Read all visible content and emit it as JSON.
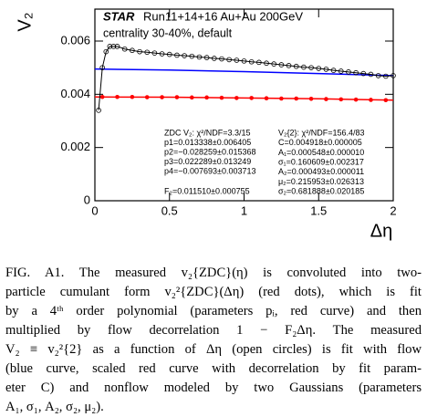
{
  "chart_data": {
    "type": "scatter",
    "xlabel": "Δη",
    "ylabel": "V₂",
    "xlim": [
      0,
      2
    ],
    "ylim": [
      0,
      0.0072
    ],
    "xticks": [
      0,
      0.5,
      1,
      1.5,
      2
    ],
    "yticks": [
      0,
      0.002,
      0.004,
      0.006
    ],
    "annotations": {
      "experiment": "STAR",
      "run": "Run11+14+16 Au+Au 200GeV",
      "centrality": "centrality 30-40%, default",
      "zdc": [
        "ZDC V₂: χ²/NDF=3.3/15",
        "p1=0.013338±0.006405",
        "p2=−0.028259±0.015368",
        "p3=0.022289±0.013249",
        "p4=−0.007693±0.003713",
        "F₂=0.011510±0.000755"
      ],
      "v22": [
        "V₂{2}: χ²/NDF=156.4/83",
        "C=0.004918±0.000005",
        "A₁=0.000548±0.000010",
        "σ₁=0.160609±0.002317",
        "A₂=0.000493±0.000011",
        "μ₂=0.215953±0.026313",
        "σ₂=0.681888±0.020185"
      ]
    },
    "series": [
      {
        "marker": "line",
        "color": "#0000ff",
        "x": [
          0,
          0.5,
          1,
          1.5,
          2
        ],
        "values": [
          0.00495,
          0.00491,
          0.00485,
          0.00478,
          0.0047
        ]
      },
      {
        "marker": "line",
        "color": "#ff0000",
        "x": [
          0,
          0.5,
          1,
          1.5,
          2
        ],
        "values": [
          0.0039,
          0.00389,
          0.00386,
          0.00383,
          0.00378
        ]
      },
      {
        "marker": "dot",
        "color": "#ff0000",
        "x": [
          0.05,
          0.15,
          0.25,
          0.35,
          0.45,
          0.55,
          0.65,
          0.75,
          0.85,
          0.95,
          1.05,
          1.15,
          1.25,
          1.35,
          1.45,
          1.55,
          1.65,
          1.75,
          1.85,
          1.95
        ],
        "values": [
          0.0039,
          0.0039,
          0.0039,
          0.00389,
          0.00389,
          0.00389,
          0.00388,
          0.00388,
          0.00387,
          0.00386,
          0.00386,
          0.00385,
          0.00384,
          0.00384,
          0.00383,
          0.00382,
          0.00381,
          0.0038,
          0.00379,
          0.00378
        ]
      },
      {
        "marker": "open-circle",
        "color": "#000000",
        "x": [
          0.025,
          0.05,
          0.075,
          0.1,
          0.125,
          0.15,
          0.2,
          0.25,
          0.3,
          0.35,
          0.4,
          0.45,
          0.5,
          0.55,
          0.6,
          0.65,
          0.7,
          0.75,
          0.8,
          0.85,
          0.9,
          0.95,
          1.0,
          1.05,
          1.1,
          1.15,
          1.2,
          1.25,
          1.3,
          1.35,
          1.4,
          1.45,
          1.5,
          1.55,
          1.6,
          1.65,
          1.7,
          1.75,
          1.8,
          1.85,
          1.9,
          1.95,
          2.0
        ],
        "values": [
          0.0034,
          0.005,
          0.0056,
          0.0058,
          0.0058,
          0.0058,
          0.0057,
          0.00565,
          0.0056,
          0.00558,
          0.00555,
          0.00552,
          0.0055,
          0.00547,
          0.00545,
          0.00543,
          0.0054,
          0.00538,
          0.00535,
          0.00533,
          0.0053,
          0.00528,
          0.00525,
          0.00522,
          0.0052,
          0.00517,
          0.00514,
          0.00511,
          0.00508,
          0.00505,
          0.00502,
          0.005,
          0.00497,
          0.00494,
          0.0049,
          0.00487,
          0.00484,
          0.00481,
          0.00478,
          0.00475,
          0.0047,
          0.00468,
          0.0047
        ]
      }
    ]
  },
  "caption": [
    "FIG. A1. The measured v₂{ZDC}(η) is convoluted into two-",
    "particle cumulant form v₂²{ZDC}(Δη) (red dots), which is fit",
    "by a 4ᵗʰ order polynomial (parameters pᵢ, red curve) and then",
    "multiplied by flow decorrelation 1 − F₂Δη.  The measured",
    "V₂ ≡ v₂²{2} as a function of Δη (open circles) is fit with flow",
    "(blue curve, scaled red curve with decorrelation by fit param-",
    "eter C) and nonflow modeled by two Gaussians (parameters",
    "A₁, σ₁, A₂, σ₂, μ₂)."
  ]
}
